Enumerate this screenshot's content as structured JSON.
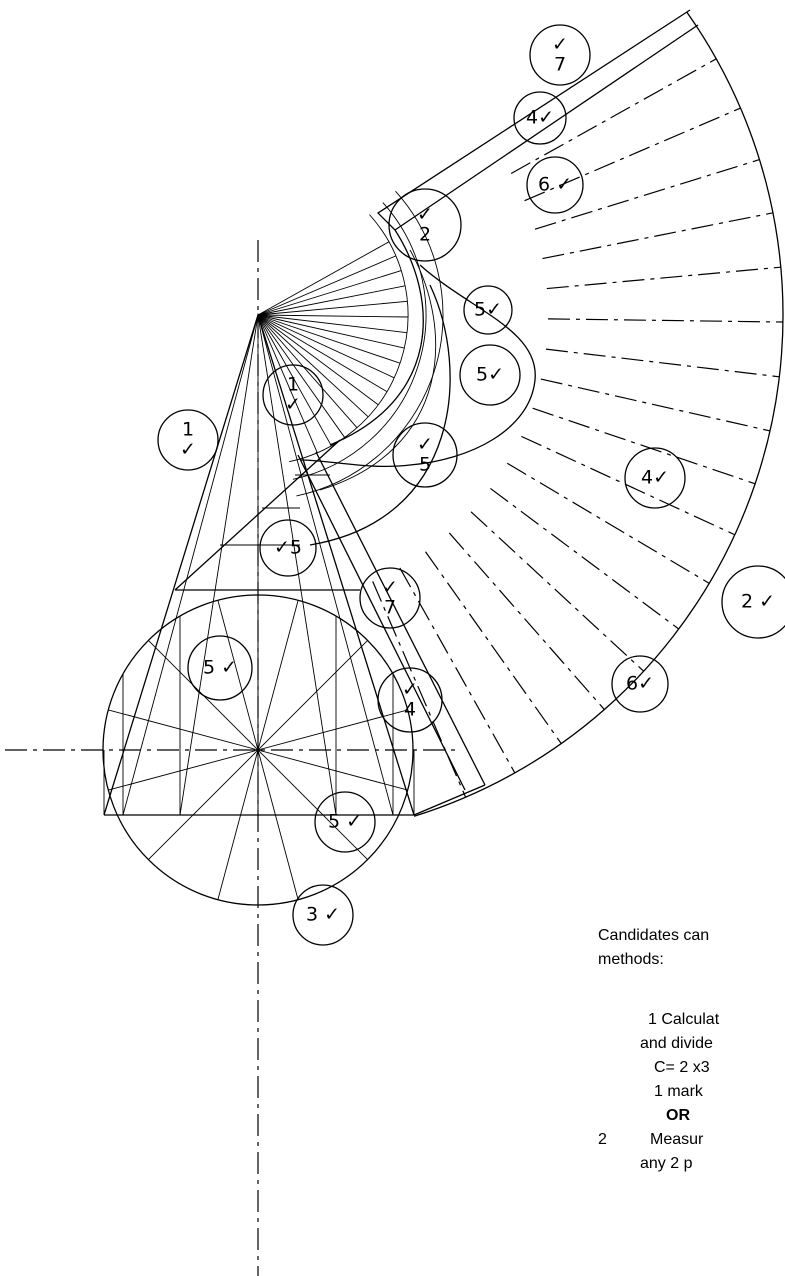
{
  "marks": [
    {
      "lines": [
        "✓",
        "7"
      ]
    },
    {
      "lines": [
        "4✓"
      ]
    },
    {
      "lines": [
        "6 ✓"
      ]
    },
    {
      "lines": [
        "✓",
        "2"
      ]
    },
    {
      "lines": [
        "5✓"
      ]
    },
    {
      "lines": [
        "5✓"
      ]
    },
    {
      "lines": [
        "✓",
        "5"
      ]
    },
    {
      "lines": [
        "4✓"
      ]
    },
    {
      "lines": [
        "2 ✓"
      ]
    },
    {
      "lines": [
        "1",
        "✓"
      ]
    },
    {
      "lines": [
        "1",
        "✓"
      ]
    },
    {
      "lines": [
        "✓5"
      ]
    },
    {
      "lines": [
        "✓",
        "7"
      ]
    },
    {
      "lines": [
        "5 ✓"
      ]
    },
    {
      "lines": [
        "6✓"
      ]
    },
    {
      "lines": [
        "✓",
        "4"
      ]
    },
    {
      "lines": [
        "5 ✓"
      ]
    },
    {
      "lines": [
        "3 ✓"
      ]
    }
  ],
  "note": {
    "lines": [
      "Candidates can",
      "methods:",
      "1 Calculat",
      "and divide",
      "C= 2 x3",
      "1 mark",
      "OR",
      "2",
      "Measur",
      "any 2 p"
    ]
  }
}
